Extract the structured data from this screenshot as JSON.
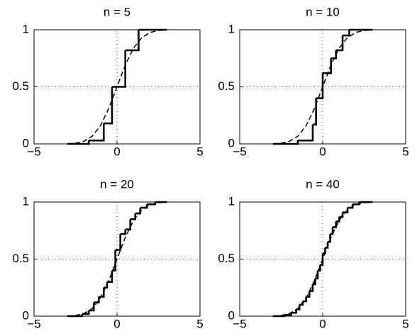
{
  "chart_data": [
    {
      "type": "step",
      "title": "n = 5",
      "xlim": [
        -5,
        5
      ],
      "ylim": [
        0,
        1
      ],
      "xticks": [
        {
          "value": -5,
          "label": "−5"
        },
        0,
        5
      ],
      "yticks": [
        0,
        0.5,
        1
      ],
      "grid": true,
      "series": [
        {
          "color": "#000000",
          "step": true,
          "x": [
            -3,
            -1.7,
            -0.8,
            -0.3,
            0.5,
            1.3,
            3
          ],
          "values": [
            0,
            0.03,
            0.18,
            0.5,
            0.82,
            1,
            1
          ]
        },
        {
          "color": "#000000",
          "linestyle": "dashed",
          "x": [
            -3,
            -2.5,
            -2,
            -1.5,
            -1,
            -0.5,
            0,
            0.5,
            1,
            1.5,
            2,
            2.5,
            3
          ],
          "values": [
            0.001,
            0.006,
            0.023,
            0.067,
            0.159,
            0.309,
            0.5,
            0.691,
            0.841,
            0.933,
            0.977,
            0.994,
            0.999
          ]
        }
      ]
    },
    {
      "type": "step",
      "title": "n = 10",
      "xlim": [
        -5,
        5
      ],
      "ylim": [
        0,
        1
      ],
      "xticks": [
        {
          "value": -5,
          "label": "−5"
        },
        0,
        5
      ],
      "yticks": [
        0,
        0.5,
        1
      ],
      "grid": true,
      "series": [
        {
          "color": "#000000",
          "step": true,
          "x": [
            -3,
            -1.5,
            -0.6,
            -0.4,
            0,
            0.5,
            0.8,
            1.2,
            1.6,
            3
          ],
          "values": [
            0,
            0.03,
            0.17,
            0.4,
            0.62,
            0.75,
            0.82,
            0.95,
            1,
            1
          ]
        },
        {
          "color": "#000000",
          "linestyle": "dashed",
          "x": [
            -3,
            -2.5,
            -2,
            -1.5,
            -1,
            -0.5,
            0,
            0.5,
            1,
            1.5,
            2,
            2.5,
            3
          ],
          "values": [
            0.001,
            0.006,
            0.023,
            0.067,
            0.159,
            0.309,
            0.5,
            0.691,
            0.841,
            0.933,
            0.977,
            0.994,
            0.999
          ]
        }
      ]
    },
    {
      "type": "step",
      "title": "n = 20",
      "xlim": [
        -5,
        5
      ],
      "ylim": [
        0,
        1
      ],
      "xticks": [
        {
          "value": -5,
          "label": "−5"
        },
        0,
        5
      ],
      "yticks": [
        0,
        0.5,
        1
      ],
      "grid": true,
      "series": [
        {
          "color": "#000000",
          "step": true,
          "x": [
            -3,
            -2.1,
            -1.7,
            -1.4,
            -1.1,
            -0.8,
            -0.6,
            -0.3,
            -0.1,
            0.2,
            0.5,
            0.8,
            1.1,
            1.4,
            1.8,
            2.3,
            3
          ],
          "values": [
            0,
            0.02,
            0.05,
            0.12,
            0.17,
            0.25,
            0.3,
            0.4,
            0.58,
            0.72,
            0.76,
            0.85,
            0.9,
            0.95,
            0.98,
            1,
            1
          ]
        },
        {
          "color": "#000000",
          "linestyle": "dashed",
          "x": [
            -3,
            -2.5,
            -2,
            -1.5,
            -1,
            -0.5,
            0,
            0.5,
            1,
            1.5,
            2,
            2.5,
            3
          ],
          "values": [
            0.001,
            0.006,
            0.023,
            0.067,
            0.159,
            0.309,
            0.5,
            0.691,
            0.841,
            0.933,
            0.977,
            0.994,
            0.999
          ]
        }
      ]
    },
    {
      "type": "step",
      "title": "n = 40",
      "xlim": [
        -5,
        5
      ],
      "ylim": [
        0,
        1
      ],
      "xticks": [
        {
          "value": -5,
          "label": "−5"
        },
        0,
        5
      ],
      "yticks": [
        0,
        0.5,
        1
      ],
      "grid": true,
      "series": [
        {
          "color": "#000000",
          "step": true,
          "x": [
            -3,
            -2.3,
            -1.9,
            -1.6,
            -1.4,
            -1.2,
            -1,
            -0.8,
            -0.6,
            -0.45,
            -0.3,
            -0.15,
            0,
            0.15,
            0.3,
            0.45,
            0.6,
            0.8,
            1,
            1.2,
            1.5,
            1.8,
            2.2,
            3
          ],
          "values": [
            0,
            0.01,
            0.03,
            0.06,
            0.1,
            0.13,
            0.17,
            0.22,
            0.28,
            0.33,
            0.4,
            0.45,
            0.55,
            0.6,
            0.65,
            0.72,
            0.78,
            0.83,
            0.87,
            0.91,
            0.95,
            0.98,
            1,
            1
          ]
        },
        {
          "color": "#000000",
          "linestyle": "dashed",
          "x": [
            -3,
            -2.5,
            -2,
            -1.5,
            -1,
            -0.5,
            0,
            0.5,
            1,
            1.5,
            2,
            2.5,
            3
          ],
          "values": [
            0.001,
            0.006,
            0.023,
            0.067,
            0.159,
            0.309,
            0.5,
            0.691,
            0.841,
            0.933,
            0.977,
            0.994,
            0.999
          ]
        }
      ]
    }
  ]
}
